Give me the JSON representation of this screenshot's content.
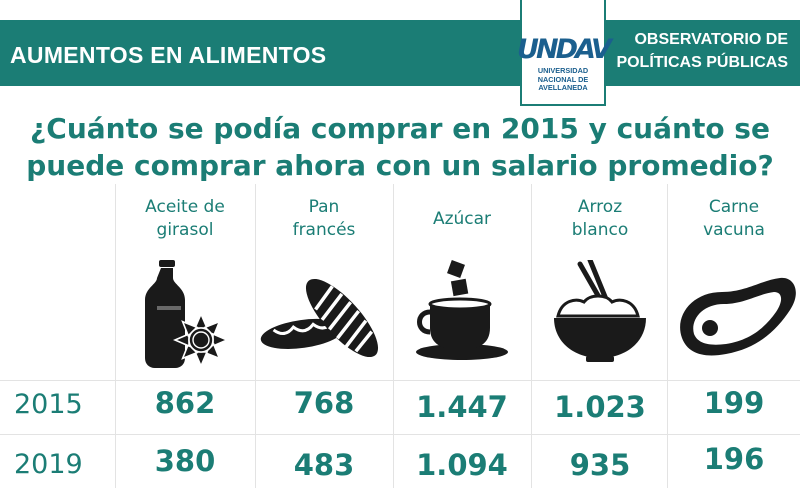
{
  "header": {
    "left_title": "AUMENTOS EN ALIMENTOS",
    "right_title_line1": "OBSERVATORIO DE",
    "right_title_line2": "POLÍTICAS PÚBLICAS",
    "accent_color": "#1b7d75"
  },
  "logo": {
    "mark": "UNDAV",
    "sub_line1": "UNIVERSIDAD",
    "sub_line2": "NACIONAL DE",
    "sub_line3": "AVELLANEDA",
    "color": "#1b5f8e"
  },
  "question": {
    "line1": "¿Cuánto se podía comprar en 2015 y cuánto se",
    "line2": "puede comprar ahora con un salario promedio?"
  },
  "table": {
    "columns": [
      {
        "line1": "Aceite de",
        "line2": "girasol",
        "icon": "oil-bottle-sunflower-icon"
      },
      {
        "line1": "Pan",
        "line2": "francés",
        "icon": "bread-icon"
      },
      {
        "line1": "Azúcar",
        "line2": "",
        "icon": "coffee-cup-sugar-icon"
      },
      {
        "line1": "Arroz",
        "line2": "blanco",
        "icon": "rice-bowl-icon"
      },
      {
        "line1": "Carne",
        "line2": "vacuna",
        "icon": "steak-icon"
      }
    ],
    "rows": [
      {
        "year": "2015",
        "values": [
          "862",
          "768",
          "1.447",
          "1.023",
          "199"
        ]
      },
      {
        "year": "2019",
        "values": [
          "380",
          "483",
          "1.094",
          "935",
          "196"
        ]
      }
    ]
  }
}
